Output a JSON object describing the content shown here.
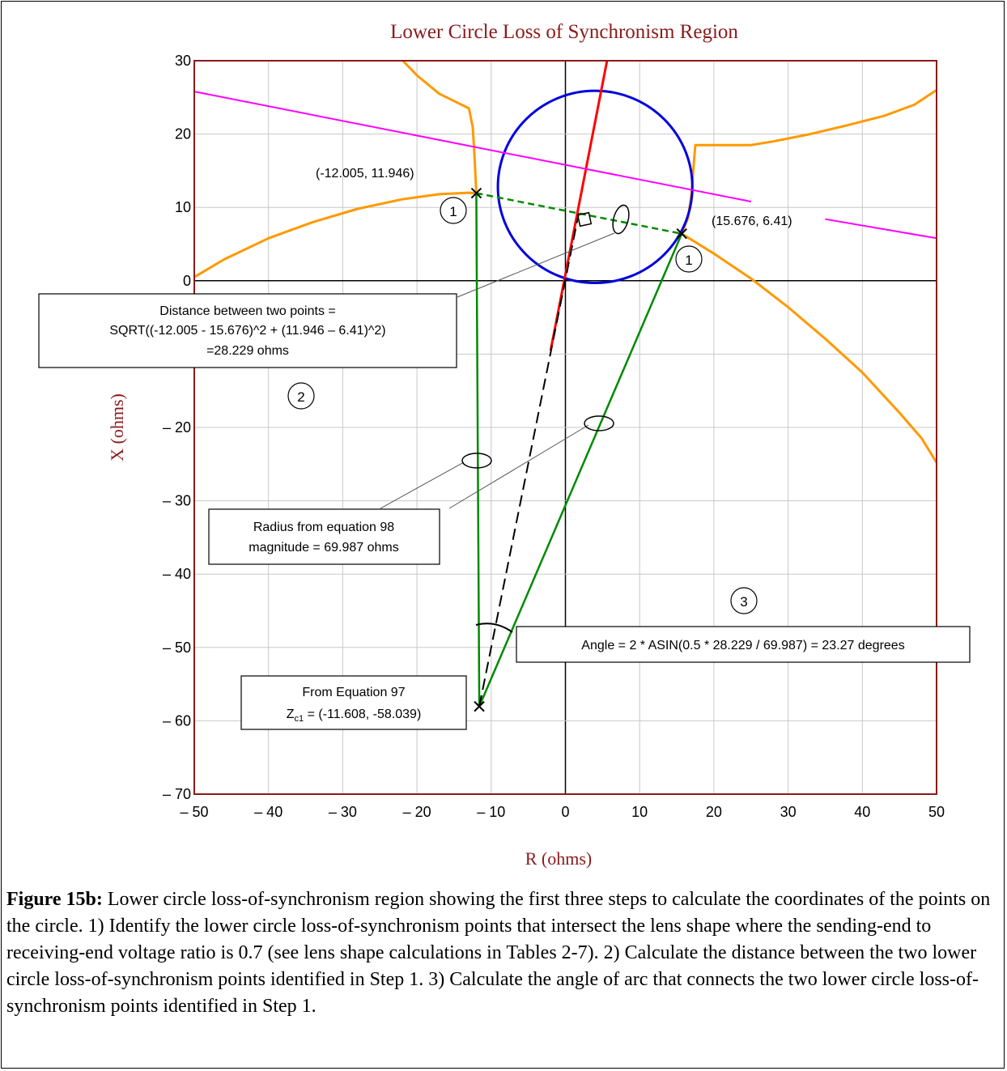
{
  "chart_data": {
    "type": "line",
    "title": "Lower Circle Loss of Synchronism Region",
    "xlabel": "R (ohms)",
    "ylabel": "X (ohms)",
    "xlim": [
      -50,
      50
    ],
    "ylim": [
      -70,
      30
    ],
    "xticks": [
      -50,
      -40,
      -30,
      -20,
      -10,
      0,
      10,
      20,
      30,
      40,
      50
    ],
    "yticks": [
      -70,
      -60,
      -50,
      -40,
      -30,
      -20,
      -10,
      0,
      10,
      20,
      30
    ],
    "xtick_labels": [
      "– 50",
      "– 40",
      "– 30",
      "– 20",
      "– 10",
      "0",
      "10",
      "20",
      "30",
      "40",
      "50"
    ],
    "ytick_labels": [
      "– 70",
      "– 60",
      "– 50",
      "– 40",
      "– 30",
      "– 20",
      "",
      "0",
      "10",
      "20",
      "30"
    ],
    "grid": true,
    "colors": {
      "title": "#8b1a1a",
      "frame": "#8b1a1a",
      "grid": "#c8c8c8",
      "lens": "#ff9900",
      "circle": "#0000e0",
      "impedance_line": "#ff0000",
      "blinder": "#ff00ff",
      "construction": "#008a00"
    },
    "series": [
      {
        "style": "lens",
        "x": [
          -21.9,
          -20,
          -17,
          -15,
          -13,
          -12.5,
          -12.3,
          -12.005
        ],
        "y": [
          30,
          28,
          25.5,
          24.5,
          23.5,
          21,
          18,
          11.946
        ]
      },
      {
        "style": "lens",
        "x": [
          -50,
          -46,
          -40,
          -34,
          -28,
          -22,
          -17,
          -13,
          -12.005
        ],
        "y": [
          0.5,
          2.9,
          5.8,
          8,
          9.8,
          11.1,
          11.8,
          12,
          11.946
        ]
      },
      {
        "style": "lens",
        "x": [
          15.676,
          16.5,
          17,
          17.3,
          17.5,
          20,
          25,
          28,
          33,
          38,
          43,
          47,
          50
        ],
        "y": [
          6.41,
          8.5,
          12,
          16,
          18.5,
          18.5,
          18.5,
          19,
          20,
          21.2,
          22.5,
          24,
          26
        ]
      },
      {
        "style": "lens",
        "x": [
          15.676,
          20,
          25,
          30,
          35,
          40,
          45,
          48,
          50
        ],
        "y": [
          6.41,
          3.7,
          0.3,
          -3.6,
          -7.9,
          -12.5,
          -18,
          -21.5,
          -24.8
        ]
      },
      {
        "style": "circle",
        "cx": 4,
        "cy": 12.8,
        "r": 13.1
      },
      {
        "style": "impedance",
        "x": [
          -2,
          5.6
        ],
        "y": [
          -9.5,
          30
        ]
      },
      {
        "style": "blinder",
        "x": [
          -50,
          25
        ],
        "y": [
          25.8,
          10.8
        ]
      },
      {
        "style": "blinder",
        "x": [
          35,
          50
        ],
        "y": [
          8.4,
          5.8
        ]
      },
      {
        "style": "chord",
        "x": [
          -12.005,
          15.676
        ],
        "y": [
          11.946,
          6.41
        ]
      },
      {
        "style": "radius",
        "x": [
          -11.608,
          -12.005
        ],
        "y": [
          -58.039,
          11.946
        ]
      },
      {
        "style": "radius",
        "x": [
          -11.608,
          15.676
        ],
        "y": [
          -58.039,
          6.41
        ]
      },
      {
        "style": "bisector",
        "x": [
          -11.608,
          1.8
        ],
        "y": [
          -58.039,
          9.2
        ]
      }
    ],
    "points": [
      {
        "x": -12.005,
        "y": 11.946,
        "label": "(-12.005, 11.946)"
      },
      {
        "x": 15.676,
        "y": 6.41,
        "label": "(15.676, 6.41)"
      },
      {
        "x": -11.608,
        "y": -58.039
      }
    ],
    "annotations": {
      "distance_box": [
        "Distance between two points =",
        "SQRT((-12.005 - 15.676)^2 + (11.946 – 6.41)^2)",
        "=28.229 ohms"
      ],
      "radius_box": [
        "Radius from equation 98",
        "magnitude = 69.987 ohms"
      ],
      "angle_box": "Angle = 2 * ASIN(0.5 * 28.229 / 69.987) = 23.27 degrees",
      "center_box_line1": "From Equation 97",
      "center_box_z": "Z",
      "center_box_sub": "c1",
      "center_box_rest": " = (-11.608, -58.039)",
      "step1": "1",
      "step2": "2",
      "step3": "3"
    }
  },
  "caption": {
    "label": "Figure 15b:",
    "text": " Lower circle loss-of-synchronism region showing the first three steps to calculate the coordinates of the points on the circle. 1) Identify the lower circle loss-of-synchronism points that intersect the lens shape where the sending-end to receiving-end voltage ratio is 0.7 (see lens shape calculations in Tables 2-7). 2) Calculate the distance between the two lower circle loss-of-synchronism points identified in Step 1. 3) Calculate the angle of arc that connects the two lower circle loss-of-synchronism points identified in Step 1."
  }
}
